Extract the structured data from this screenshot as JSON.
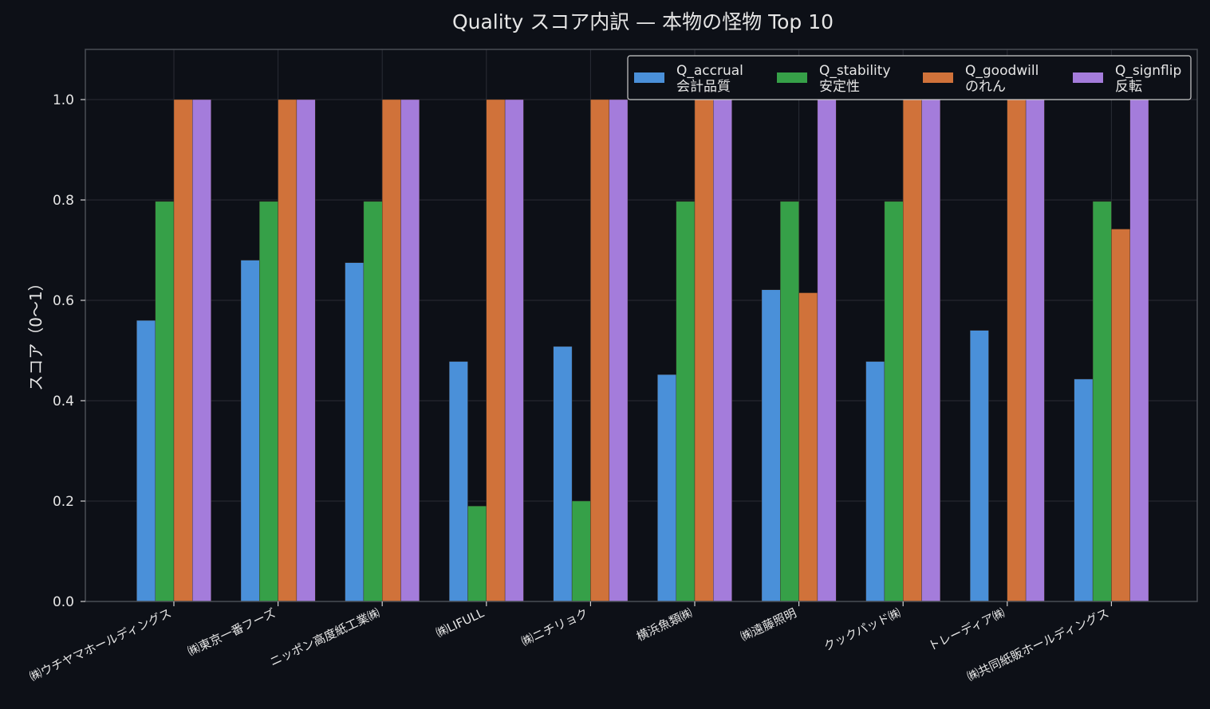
{
  "chart_data": {
    "type": "bar",
    "title": "Quality スコア内訳 — 本物の怪物 Top 10",
    "xlabel": "",
    "ylabel": "スコア（0〜1）",
    "ylim": [
      0,
      1.1
    ],
    "yticks": [
      "0.0",
      "0.2",
      "0.4",
      "0.6",
      "0.8",
      "1.0"
    ],
    "grid": true,
    "legend_position": "top-right",
    "categories": [
      "㈱ウチヤマホールディングス",
      "㈱東京一番フーズ",
      "ニッポン高度紙工業㈱",
      "㈱LIFULL",
      "㈱ニチリョク",
      "横浜魚類㈱",
      "㈱遠藤照明",
      "クックパッド㈱",
      "トレーディア㈱",
      "㈱共同紙販ホールディングス"
    ],
    "series": [
      {
        "name": "Q_accrual",
        "label2": "会計品質",
        "color": "#4a90d9",
        "values": [
          0.56,
          0.68,
          0.675,
          0.478,
          0.508,
          0.452,
          0.621,
          0.478,
          0.54,
          0.443
        ]
      },
      {
        "name": "Q_stability",
        "label2": "安定性",
        "color": "#36a048",
        "values": [
          0.797,
          0.797,
          0.797,
          0.19,
          0.2,
          0.797,
          0.797,
          0.797,
          0.0,
          0.797
        ]
      },
      {
        "name": "Q_goodwill",
        "label2": "のれん",
        "color": "#d0723a",
        "values": [
          1.0,
          1.0,
          1.0,
          1.0,
          1.0,
          1.0,
          0.615,
          1.0,
          1.0,
          0.742
        ]
      },
      {
        "name": "Q_signflip",
        "label2": "反転",
        "color": "#a47cdb",
        "values": [
          1.0,
          1.0,
          1.0,
          1.0,
          1.0,
          1.0,
          1.0,
          1.0,
          1.0,
          1.0
        ]
      }
    ],
    "colors": {
      "background": "#0d1017",
      "axis": "#4a4d55",
      "grid": "#2a2d35",
      "text": "#e6e6e6"
    }
  }
}
